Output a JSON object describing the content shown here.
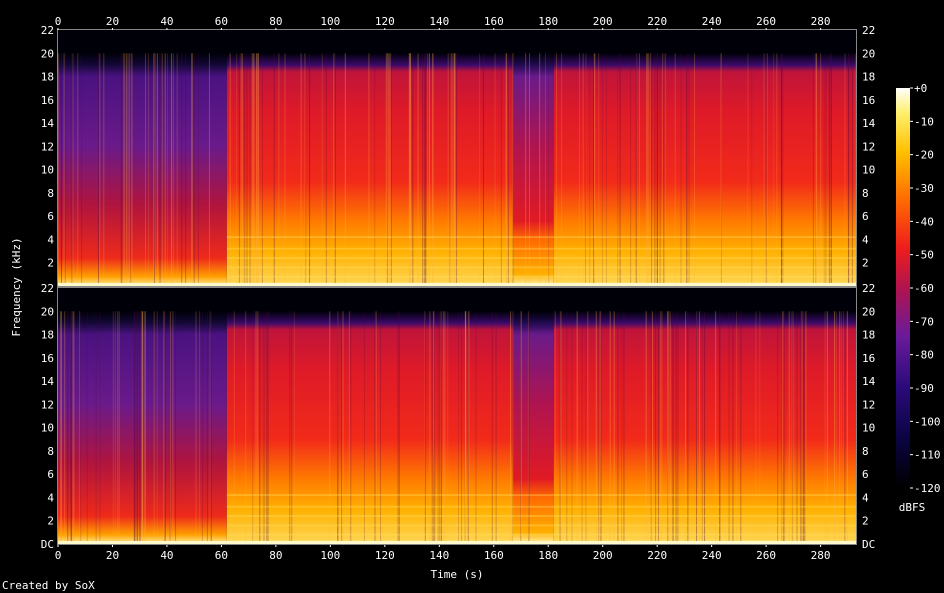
{
  "chart_data": {
    "type": "heatmap",
    "xlabel": "Time (s)",
    "ylabel": "Frequency (kHz)",
    "xlim": [
      0,
      293
    ],
    "ylim": [
      0,
      22
    ],
    "x_ticks": [
      0,
      20,
      40,
      60,
      80,
      100,
      120,
      140,
      160,
      180,
      200,
      220,
      240,
      260,
      280
    ],
    "y_ticks_top": [
      "2",
      "4",
      "6",
      "8",
      "10",
      "12",
      "14",
      "16",
      "18",
      "20",
      "22"
    ],
    "y_ticks_bottom": [
      "DC",
      "2",
      "4",
      "6",
      "8",
      "10",
      "12",
      "14",
      "16",
      "18",
      "20",
      "22"
    ],
    "channels": 2,
    "colorbar": {
      "label": "dBFS",
      "range": [
        -120,
        0
      ],
      "ticks": [
        "+0",
        "-10",
        "-20",
        "-30",
        "-40",
        "-50",
        "-60",
        "-70",
        "-80",
        "-90",
        "-100",
        "-110",
        "-120"
      ]
    },
    "segments": [
      {
        "start": 0,
        "end": 62,
        "cutoff_khz": 20,
        "level": "quiet"
      },
      {
        "start": 62,
        "end": 167,
        "cutoff_khz": 20,
        "level": "loud"
      },
      {
        "start": 167,
        "end": 182,
        "cutoff_khz": 20,
        "level": "mid"
      },
      {
        "start": 182,
        "end": 293,
        "cutoff_khz": 20,
        "level": "loud"
      }
    ],
    "colors": [
      "#000000",
      "#1a0066",
      "#6a1a9a",
      "#c0144e",
      "#ef1d1d",
      "#ff7a00",
      "#ffc800",
      "#fff8c8",
      "#ffffff"
    ]
  },
  "footer": {
    "credit": "Created by SoX"
  }
}
